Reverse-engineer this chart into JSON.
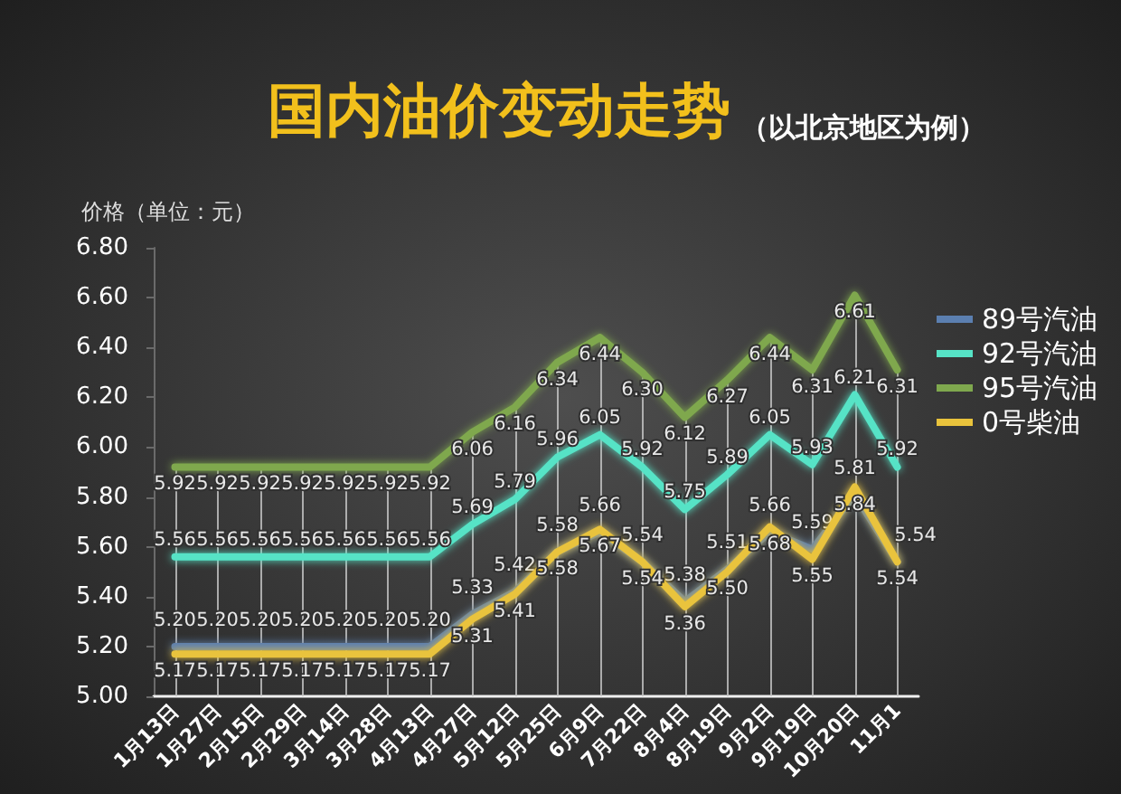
{
  "chart_data": {
    "type": "line",
    "title": "国内油价变动走势",
    "subtitle": "（以北京地区为例）",
    "ylabel": "价格（单位：元）",
    "categories": [
      "1月13日",
      "1月27日",
      "2月15日",
      "2月29日",
      "3月14日",
      "3月28日",
      "4月13日",
      "4月27日",
      "5月12日",
      "5月25日",
      "6月9日",
      "7月22日",
      "8月4日",
      "8月19日",
      "9月2日",
      "9月19日",
      "10月20日",
      "11月1"
    ],
    "series": [
      {
        "name": "89号汽油",
        "color": "#5b7fb0",
        "values": [
          5.2,
          5.2,
          5.2,
          5.2,
          5.2,
          5.2,
          5.2,
          5.33,
          5.42,
          5.58,
          5.66,
          5.54,
          5.38,
          5.51,
          5.66,
          5.59,
          5.81,
          5.54
        ],
        "value_labels": [
          "5.20",
          "5.20",
          "5.20",
          "5.20",
          "5.20",
          "5.20",
          "5.20",
          "5.33",
          "5.42",
          "5.58",
          "5.66",
          "5.54",
          "5.38",
          "5.51",
          "5.66",
          "5.59",
          "5.81",
          "5.54"
        ]
      },
      {
        "name": "92号汽油",
        "color": "#56e3c6",
        "values": [
          5.56,
          5.56,
          5.56,
          5.56,
          5.56,
          5.56,
          5.56,
          5.69,
          5.79,
          5.96,
          6.05,
          5.92,
          5.75,
          5.89,
          6.05,
          5.93,
          6.21,
          5.92
        ],
        "value_labels": [
          "5.56",
          "5.56",
          "5.56",
          "5.56",
          "5.56",
          "5.56",
          "5.56",
          "5.69",
          "5.79",
          "5.96",
          "6.05",
          "5.92",
          "5.75",
          "5.89",
          "6.05",
          "5.93",
          "6.21",
          "5.92"
        ]
      },
      {
        "name": "95号汽油",
        "color": "#7fa84e",
        "values": [
          5.92,
          5.92,
          5.92,
          5.92,
          5.92,
          5.92,
          5.92,
          6.06,
          6.16,
          6.34,
          6.44,
          6.3,
          6.12,
          6.27,
          6.44,
          6.31,
          6.61,
          6.31
        ],
        "value_labels": [
          "5.92",
          "5.92",
          "5.92",
          "5.92",
          "5.92",
          "5.92",
          "5.92",
          "6.06",
          "6.16",
          "6.34",
          "6.44",
          "6.30",
          "6.12",
          "6.27",
          "6.44",
          "6.31",
          "6.61",
          "6.31"
        ]
      },
      {
        "name": "0号柴油",
        "color": "#e9c33c",
        "values": [
          5.17,
          5.17,
          5.17,
          5.17,
          5.17,
          5.17,
          5.17,
          5.31,
          5.41,
          5.58,
          5.67,
          5.54,
          5.36,
          5.5,
          5.68,
          5.55,
          5.84,
          5.54
        ],
        "value_labels": [
          "5.17",
          "5.17",
          "5.17",
          "5.17",
          "5.17",
          "5.17",
          "5.17",
          "5.31",
          "5.41",
          "5.58",
          "5.67",
          "5.54",
          "5.36",
          "5.50",
          "5.68",
          "5.55",
          "5.84",
          "5.54"
        ]
      }
    ],
    "ylim": [
      5,
      6.8
    ],
    "yticks": [
      {
        "value": 5,
        "label": "5.00"
      },
      {
        "value": 5.2,
        "label": "5.20"
      },
      {
        "value": 5.4,
        "label": "5.40"
      },
      {
        "value": 5.6,
        "label": "5.60"
      },
      {
        "value": 5.8,
        "label": "5.80"
      },
      {
        "value": 6,
        "label": "6.00"
      },
      {
        "value": 6.2,
        "label": "6.20"
      },
      {
        "value": 6.4,
        "label": "6.40"
      },
      {
        "value": 6.6,
        "label": "6.60"
      },
      {
        "value": 6.8,
        "label": "6.80"
      }
    ],
    "legend": "right",
    "grid": "x",
    "marker": "none",
    "line_style": "solid"
  }
}
